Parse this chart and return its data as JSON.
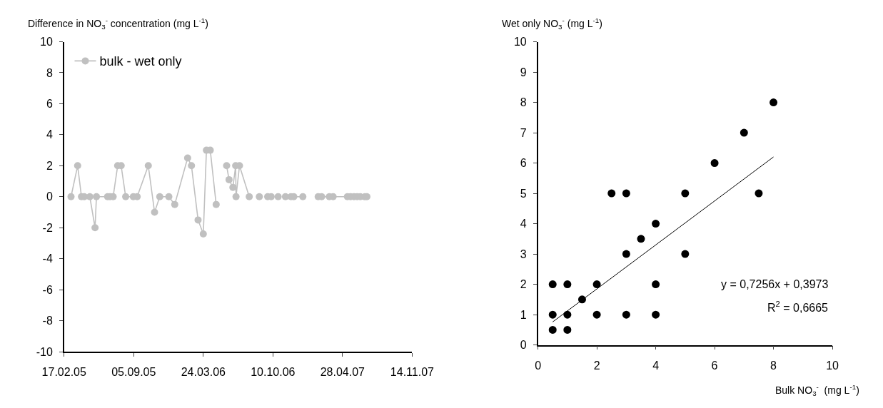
{
  "chart_data": [
    {
      "type": "line",
      "ylabel": "Difference in NO$_{3}$$^{-}$ concentration (mg L$^{-1}$)",
      "xlim": [
        "2005-02-17",
        "2007-11-14"
      ],
      "xticks": [
        {
          "value": "2005-02-17",
          "label": "17.02.05"
        },
        {
          "value": "2005-09-05",
          "label": "05.09.05"
        },
        {
          "value": "2006-03-24",
          "label": "24.03.06"
        },
        {
          "value": "2006-10-10",
          "label": "10.10.06"
        },
        {
          "value": "2007-04-28",
          "label": "28.04.07"
        },
        {
          "value": "2007-11-14",
          "label": "14.11.07"
        }
      ],
      "ylim": [
        -10,
        10
      ],
      "yticks": [
        -10,
        -8,
        -6,
        -4,
        -2,
        0,
        2,
        4,
        6,
        8,
        10
      ],
      "legend": "top left",
      "marker": "circle",
      "line_style": "solid",
      "series": [
        {
          "name": "bulk - wet only",
          "color": "#c0c0c0",
          "x": [
            "2005-03-09",
            "2005-03-28",
            "2005-04-08",
            "2005-04-16",
            "2005-05-02",
            "2005-05-17",
            "2005-05-21",
            "2005-06-22",
            "2005-06-29",
            "2005-07-08",
            "2005-07-21",
            "2005-07-31",
            "2005-08-13",
            "2005-09-04",
            "2005-09-15",
            "2005-10-17",
            "2005-11-04",
            "2005-11-19",
            "2005-12-15",
            "2006-01-01",
            "2006-02-07",
            "2006-02-18",
            "2006-03-09",
            "2006-03-24",
            "2006-04-02",
            "2006-04-13",
            "2006-04-30",
            "2006-05-15",
            "2006-05-30",
            "2006-06-06",
            "2006-06-17",
            "2006-06-25",
            "2006-06-26",
            "2006-07-06",
            "2006-08-03",
            "2006-08-18",
            "2006-09-01",
            "2006-09-15",
            "2006-09-25",
            "2006-10-05",
            "2006-10-15",
            "2006-10-25",
            "2006-11-05",
            "2006-11-15",
            "2006-12-01",
            "2006-12-09",
            "2007-01-04",
            "2007-02-01",
            "2007-02-17",
            "2007-02-27",
            "2007-03-21",
            "2007-04-01",
            "2007-05-12",
            "2007-05-21",
            "2007-05-31",
            "2007-06-09",
            "2007-06-18",
            "2007-07-01",
            "2007-07-07"
          ],
          "values": [
            0,
            2,
            0,
            0,
            0,
            -2,
            0,
            0,
            0,
            0,
            2,
            2,
            0,
            0,
            0,
            2,
            -1,
            0,
            0,
            -0.5,
            2.5,
            2,
            -1.5,
            -2.4,
            3,
            3,
            -0.5,
            null,
            2,
            1.1,
            0.6,
            2,
            0,
            2,
            0,
            null,
            0,
            null,
            0,
            0,
            null,
            0,
            null,
            0,
            0,
            0,
            0,
            null,
            0,
            0,
            0,
            0,
            0,
            0,
            0,
            0,
            0,
            0,
            0
          ]
        }
      ]
    },
    {
      "type": "scatter",
      "ylabel": "Wet only NO$_{3}$$^{-}$ (mg L$^{-1}$)",
      "xlabel": "Bulk NO$_{3}$$^{-}$  (mg L$^{-1}$)",
      "xlim": [
        0,
        10
      ],
      "xticks": [
        0,
        2,
        4,
        6,
        8,
        10
      ],
      "ylim": [
        0,
        10
      ],
      "yticks": [
        0,
        1,
        2,
        3,
        4,
        5,
        6,
        7,
        8,
        9,
        10
      ],
      "marker": "circle",
      "annotations": [
        "y = 0,7256x + 0,3973",
        "R$^{2}$ = 0,6665"
      ],
      "series": [
        {
          "color": "#000000",
          "x": [
            0.5,
            1,
            0.5,
            1,
            0.5,
            1,
            1.5,
            2,
            2,
            2.5,
            3,
            3,
            3,
            3.5,
            4,
            4,
            4,
            5,
            5,
            6,
            7,
            7.5,
            8
          ],
          "values": [
            2,
            2,
            1,
            1,
            0.5,
            0.5,
            1.5,
            2,
            1,
            5,
            5,
            3,
            1,
            3.5,
            4,
            2,
            1,
            5,
            3,
            6,
            7,
            5,
            8
          ]
        },
        {
          "type": "line",
          "color": "#000000",
          "marker": "none",
          "x": [
            0.5,
            8
          ],
          "values": [
            0.76,
            6.2
          ]
        }
      ]
    }
  ]
}
